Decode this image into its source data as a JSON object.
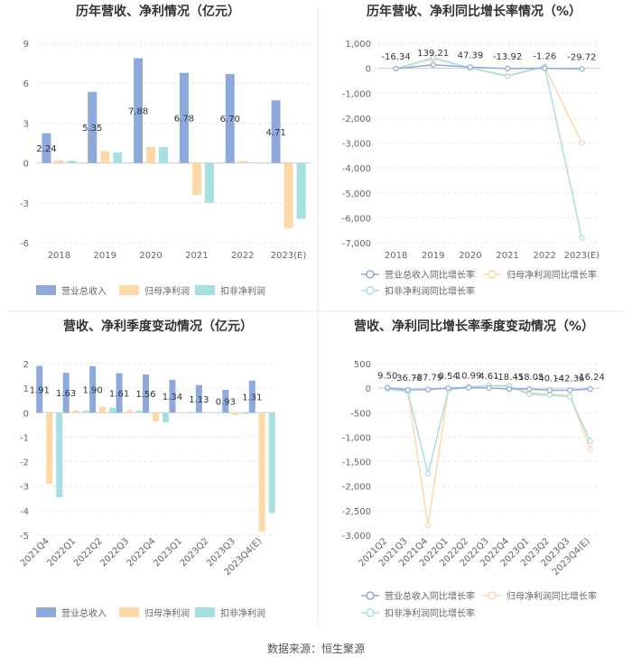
{
  "colors": {
    "revenue": "#8eaadc",
    "net_profit": "#fcd9a6",
    "deducted_profit": "#a6e0e0",
    "axis_text": "#666666",
    "grid": "#e6e6e6",
    "divider": "#e8e8e8",
    "title": "#333333"
  },
  "footer": {
    "source": "数据来源：恒生聚源"
  },
  "chart_data": [
    {
      "type": "bar",
      "title": "历年营收、净利情况（亿元）",
      "categories": [
        "2018",
        "2019",
        "2020",
        "2021",
        "2022",
        "2023(E)"
      ],
      "ylim": [
        -6,
        9
      ],
      "yticks": [
        -6,
        -3,
        0,
        3,
        6,
        9
      ],
      "grid": true,
      "legend_position": "bottom",
      "series": [
        {
          "name": "营业总收入",
          "values": [
            2.24,
            5.35,
            7.88,
            6.78,
            6.7,
            4.71
          ],
          "labels": [
            "2.24",
            "5.35",
            "7.88",
            "6.78",
            "6.70",
            "4.71"
          ],
          "color": "#8eaadc"
        },
        {
          "name": "归母净利润",
          "values": [
            0.2,
            0.9,
            1.2,
            -2.4,
            0.15,
            -4.9
          ],
          "color": "#fcd9a6"
        },
        {
          "name": "扣非净利润",
          "values": [
            0.15,
            0.8,
            1.2,
            -3.0,
            0.05,
            -4.2
          ],
          "color": "#a6e0e0"
        }
      ]
    },
    {
      "type": "line",
      "title": "历年营收、净利同比增长率情况（%）",
      "categories": [
        "2018",
        "2019",
        "2020",
        "2021",
        "2022",
        "2023(E)"
      ],
      "ylim": [
        -7000,
        1000
      ],
      "yticks": [
        -7000,
        -6000,
        -5000,
        -4000,
        -3000,
        -2000,
        -1000,
        0,
        1000
      ],
      "ytick_labels": [
        "-7,000",
        "-6,000",
        "-5,000",
        "-4,000",
        "-3,000",
        "-2,000",
        "-1,000",
        "0",
        "1,000"
      ],
      "grid": true,
      "legend_position": "bottom",
      "series": [
        {
          "name": "营业总收入同比增长率",
          "values": [
            -16.34,
            139.21,
            47.39,
            -13.92,
            -1.26,
            -29.72
          ],
          "labels": [
            "-16.34",
            "139.21",
            "47.39",
            "-13.92",
            "-1.26",
            "-29.72"
          ],
          "color": "#8eaadc"
        },
        {
          "name": "归母净利润同比增长率",
          "values": [
            -10,
            380,
            20,
            -300,
            80,
            -3000
          ],
          "color": "#fcd9a6"
        },
        {
          "name": "扣非净利润同比增长率",
          "values": [
            -15,
            420,
            10,
            -320,
            60,
            -6800
          ],
          "color": "#a6e0e0"
        }
      ]
    },
    {
      "type": "bar",
      "title": "营收、净利季度变动情况（亿元）",
      "categories": [
        "2021Q4",
        "2022Q1",
        "2022Q2",
        "2022Q3",
        "2022Q4",
        "2023Q1",
        "2023Q2",
        "2023Q3",
        "2023Q4(E)"
      ],
      "ylim": [
        -5,
        2
      ],
      "yticks": [
        -5,
        -4,
        -3,
        -2,
        -1,
        0,
        1,
        2
      ],
      "grid": true,
      "legend_position": "bottom",
      "series": [
        {
          "name": "营业总收入",
          "values": [
            1.91,
            1.63,
            1.9,
            1.61,
            1.56,
            1.34,
            1.13,
            0.93,
            1.31
          ],
          "labels": [
            "1.91",
            "1.63",
            "1.90",
            "1.61",
            "1.56",
            "1.34",
            "1.13",
            "0.93",
            "1.31"
          ],
          "color": "#8eaadc"
        },
        {
          "name": "归母净利润",
          "values": [
            -2.9,
            0.1,
            0.25,
            0.1,
            -0.35,
            0.02,
            0.02,
            -0.1,
            -4.85
          ],
          "color": "#fcd9a6"
        },
        {
          "name": "扣非净利润",
          "values": [
            -3.45,
            0.08,
            0.2,
            0.08,
            -0.4,
            0.01,
            0.01,
            -0.05,
            -4.1
          ],
          "color": "#a6e0e0"
        }
      ]
    },
    {
      "type": "line",
      "title": "营收、净利同比增长率季度变动情况（%）",
      "categories": [
        "2021Q2",
        "2021Q3",
        "2021Q4",
        "2022Q1",
        "2022Q2",
        "2022Q3",
        "2022Q4",
        "2023Q1",
        "2023Q2",
        "2023Q3",
        "2023Q4(E)"
      ],
      "ylim": [
        -3000,
        500
      ],
      "yticks": [
        -3000,
        -2500,
        -2000,
        -1500,
        -1000,
        -500,
        0,
        500
      ],
      "ytick_labels": [
        "-3,000",
        "-2,500",
        "-2,000",
        "-1,500",
        "-1,000",
        "-500",
        "0",
        "500"
      ],
      "grid": true,
      "legend_position": "bottom",
      "series": [
        {
          "name": "营业总收入同比增长率",
          "values": [
            9.5,
            -36.76,
            -27.79,
            0.54,
            10.99,
            4.61,
            -18.45,
            -18.05,
            -40.14,
            -42.36,
            -16.24
          ],
          "labels": [
            "9.50",
            "-36.76",
            "-27.79",
            "0.54",
            "10.99",
            "4.61",
            "-18.45",
            "-18.05",
            "-40.14",
            "-42.36",
            "-16.24"
          ],
          "color": "#8eaadc"
        },
        {
          "name": "归母净利润同比增长率",
          "values": [
            -10,
            -60,
            -2800,
            -30,
            30,
            60,
            50,
            -100,
            -120,
            -150,
            -1250
          ],
          "color": "#fcd9a6"
        },
        {
          "name": "扣非净利润同比增长率",
          "values": [
            -20,
            -70,
            -1750,
            -40,
            20,
            50,
            40,
            -130,
            -140,
            -180,
            -1080
          ],
          "color": "#a6e0e0"
        }
      ]
    }
  ]
}
